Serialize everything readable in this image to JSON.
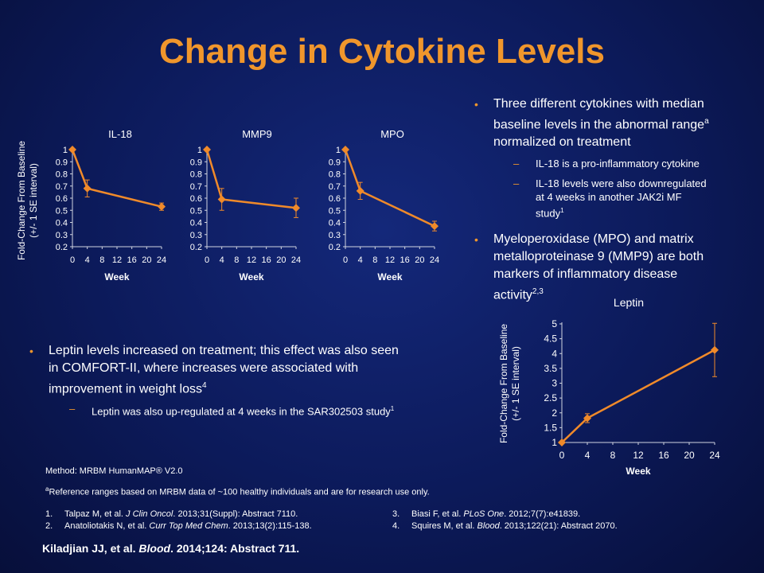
{
  "title": "Change in Cytokine Levels",
  "right_bullets": {
    "b1": {
      "line1": "Three different cytokines with median",
      "line2_pre": "baseline levels in the abnormal range",
      "line2_sup": "a",
      "line3": "normalized on treatment"
    },
    "s1": "IL-18 is a pro-inflammatory  cytokine",
    "s2": {
      "line1": "IL-18 levels were also downregulated",
      "line2": "at 4 weeks in another JAK2i MF",
      "line3": "study",
      "sup": "1"
    },
    "b2": {
      "line1": "Myeloperoxidase (MPO) and matrix",
      "line2": "metalloproteinase 9 (MMP9) are both",
      "line3": "markers of inflammatory disease",
      "line4": "activity",
      "sup": "2,3"
    }
  },
  "left_bullets": {
    "b1": {
      "line1": "Leptin levels increased on treatment; this effect was also seen",
      "line2": "in COMFORT-II, where increases were associated with",
      "line3": "improvement in weight loss",
      "sup": "4"
    },
    "s1": {
      "text": "Leptin was also up-regulated at 4 weeks in the SAR302503 study",
      "sup": "1"
    }
  },
  "method": "Method: MRBM HumanMAP® V2.0",
  "reference_note": {
    "sup": "a",
    "text": "Reference ranges based on MRBM data of  ~100  healthy individuals  and are for research use only."
  },
  "references": [
    {
      "num": "1.",
      "pre": "Talpaz M, et al. ",
      "journal": "J Clin Oncol",
      "post": ". 2013;31(Suppl):  Abstract 7110."
    },
    {
      "num": "2.",
      "pre": "Anatoliotakis N, et al. ",
      "journal": "Curr Top Med Chem",
      "post": ". 2013;13(2):115-138."
    },
    {
      "num": "3.",
      "pre": "Biasi F, et al. ",
      "journal": "PLoS One",
      "post": ". 2012;7(7):e41839."
    },
    {
      "num": "4.",
      "pre": "Squires M, et al. ",
      "journal": "Blood",
      "post": ". 2013;122(21):  Abstract 2070."
    }
  ],
  "citation": {
    "pre": "Kiladjian JJ, et al. ",
    "journal": "Blood",
    "post": ". 2014;124: Abstract 711."
  },
  "colors": {
    "accent": "#f0962c",
    "line": "#f08a2a"
  },
  "chart_data": [
    {
      "type": "line",
      "title": "IL-18",
      "xlabel": "Week",
      "ylabel": "Fold-Change From Baseline (+/- 1 SE interval)",
      "x": [
        0,
        4,
        24
      ],
      "y": [
        1.0,
        0.68,
        0.53
      ],
      "err": [
        0,
        0.07,
        0.03
      ],
      "xticks": [
        0,
        4,
        8,
        12,
        16,
        20,
        24
      ],
      "ylim": [
        0.2,
        1
      ],
      "yticks": [
        "1",
        "0.9",
        "0.8",
        "0.7",
        "0.6",
        "0.5",
        "0.4",
        "0.3",
        "0.2"
      ]
    },
    {
      "type": "line",
      "title": "MMP9",
      "xlabel": "Week",
      "x": [
        0,
        4,
        24
      ],
      "y": [
        1.0,
        0.59,
        0.52
      ],
      "err": [
        0,
        0.09,
        0.08
      ],
      "xticks": [
        0,
        4,
        8,
        12,
        16,
        20,
        24
      ],
      "ylim": [
        0.2,
        1
      ],
      "yticks": [
        "1",
        "0.9",
        "0.8",
        "0.7",
        "0.6",
        "0.5",
        "0.4",
        "0.3",
        "0.2"
      ]
    },
    {
      "type": "line",
      "title": "MPO",
      "xlabel": "Week",
      "x": [
        0,
        4,
        24
      ],
      "y": [
        1.0,
        0.66,
        0.37
      ],
      "err": [
        0,
        0.07,
        0.04
      ],
      "xticks": [
        0,
        4,
        8,
        12,
        16,
        20,
        24
      ],
      "ylim": [
        0.2,
        1
      ],
      "yticks": [
        "1",
        "0.9",
        "0.8",
        "0.7",
        "0.6",
        "0.5",
        "0.4",
        "0.3",
        "0.2"
      ]
    },
    {
      "type": "line",
      "title": "Leptin",
      "xlabel": "Week",
      "ylabel": "Fold-Change From Baseline (+/- 1 SE interval)",
      "x": [
        0,
        4,
        24
      ],
      "y": [
        1.0,
        1.82,
        4.12
      ],
      "err": [
        0,
        0.15,
        0.9
      ],
      "xticks": [
        0,
        4,
        8,
        12,
        16,
        20,
        24
      ],
      "ylim": [
        1,
        5
      ],
      "yticks": [
        "5",
        "4.5",
        "4",
        "3.5",
        "3",
        "2.5",
        "2",
        "1.5",
        "1"
      ]
    }
  ]
}
